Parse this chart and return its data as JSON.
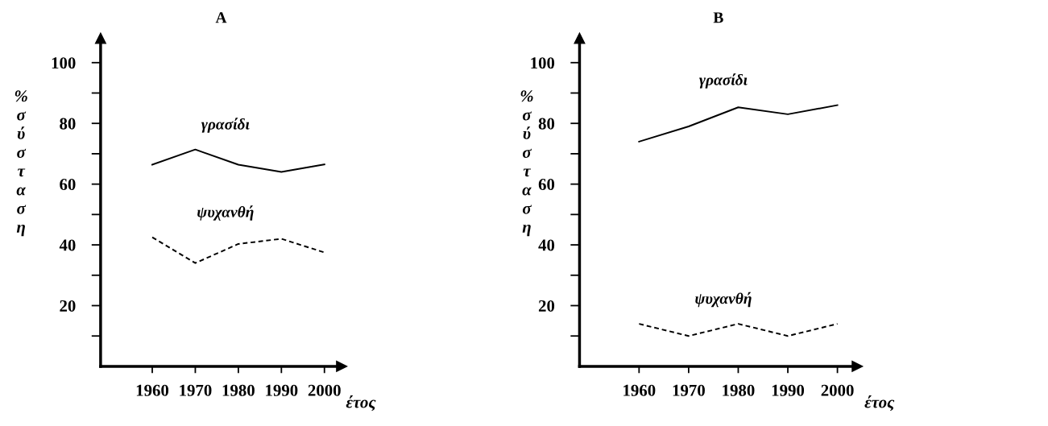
{
  "chart_data": [
    {
      "type": "line",
      "title": "A",
      "xlabel": "έτος",
      "ylabel": "% σύσταση",
      "x": [
        1960,
        1970,
        1980,
        1990,
        2000
      ],
      "xlim": [
        1948,
        2004
      ],
      "xticks": [
        1960,
        1970,
        1980,
        1990,
        2000
      ],
      "ylim": [
        0,
        108
      ],
      "yticks": [
        {
          "value": 10,
          "label": null
        },
        20,
        {
          "value": 30,
          "label": null
        },
        40,
        {
          "value": 50,
          "label": null
        },
        60,
        {
          "value": 70,
          "label": null
        },
        80,
        {
          "value": 90,
          "label": null
        },
        100
      ],
      "grid": false,
      "legend": false,
      "marker": "none",
      "series": [
        {
          "name": "γρασίδι",
          "color": "#000000",
          "line_style": "solid",
          "values": [
            66.4,
            71.4,
            66.4,
            64,
            66.5
          ]
        },
        {
          "name": "ψυχανθή",
          "color": "#000000",
          "line_style": "dashed",
          "values": [
            42.5,
            34,
            40.3,
            42,
            37.5
          ]
        }
      ]
    },
    {
      "type": "line",
      "title": "B",
      "xlabel": "έτος",
      "ylabel": "% σύσταση",
      "x": [
        1960,
        1970,
        1980,
        1990,
        2000
      ],
      "xlim": [
        1948,
        2004
      ],
      "xticks": [
        1960,
        1970,
        1980,
        1990,
        2000
      ],
      "ylim": [
        0,
        108
      ],
      "yticks": [
        {
          "value": 10,
          "label": null
        },
        20,
        {
          "value": 30,
          "label": null
        },
        40,
        {
          "value": 50,
          "label": null
        },
        60,
        {
          "value": 70,
          "label": null
        },
        80,
        {
          "value": 90,
          "label": null
        },
        100
      ],
      "grid": false,
      "legend": false,
      "marker": "none",
      "series": [
        {
          "name": "γρασίδι",
          "color": "#000000",
          "line_style": "solid",
          "values": [
            74,
            79,
            85.3,
            83,
            86
          ]
        },
        {
          "name": "ψυχανθή",
          "color": "#000000",
          "line_style": "dashed",
          "values": [
            14,
            10,
            14,
            10,
            14
          ]
        }
      ]
    }
  ]
}
